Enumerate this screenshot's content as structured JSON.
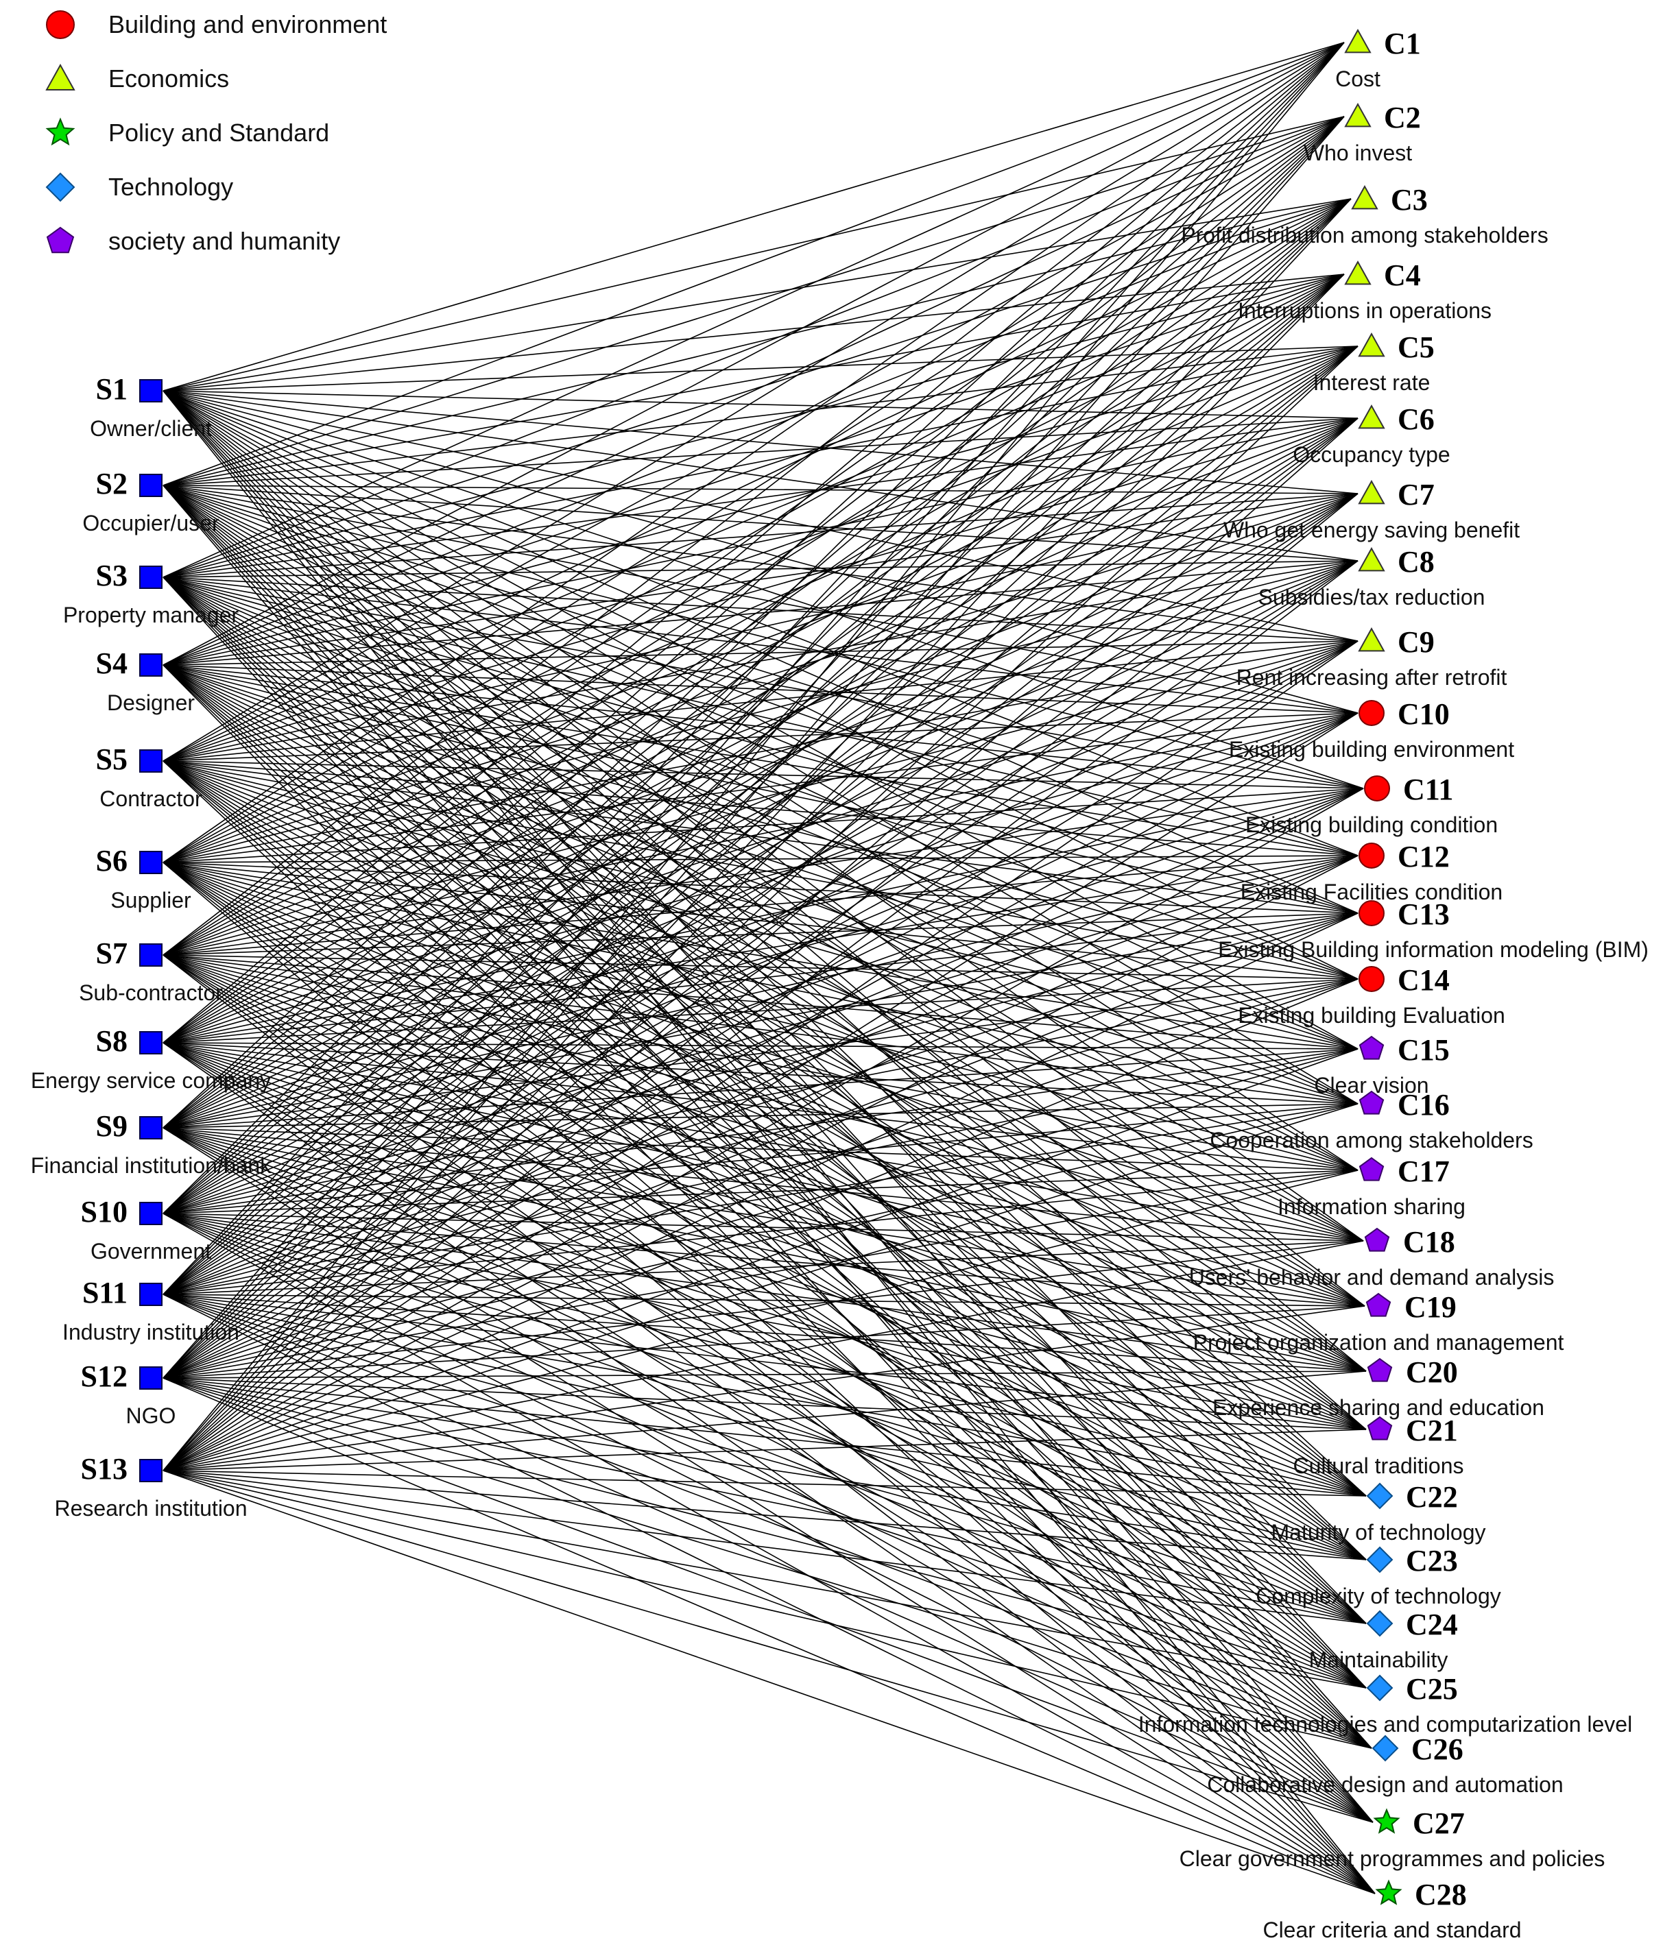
{
  "legend": [
    {
      "label": "Building and environment",
      "shape": "circle",
      "color": "#ff0000"
    },
    {
      "label": "Economics",
      "shape": "triangle",
      "color": "#ccff00"
    },
    {
      "label": "Policy and Standard",
      "shape": "star",
      "color": "#00dd00"
    },
    {
      "label": "Technology",
      "shape": "diamond",
      "color": "#1e90ff"
    },
    {
      "label": "society and humanity",
      "shape": "pentagon",
      "color": "#8800ee"
    }
  ],
  "stakeholders": [
    {
      "id": "S1",
      "name": "Owner/client"
    },
    {
      "id": "S2",
      "name": "Occupier/user"
    },
    {
      "id": "S3",
      "name": "Property manager"
    },
    {
      "id": "S4",
      "name": "Designer"
    },
    {
      "id": "S5",
      "name": "Contractor"
    },
    {
      "id": "S6",
      "name": "Supplier"
    },
    {
      "id": "S7",
      "name": "Sub-contractor"
    },
    {
      "id": "S8",
      "name": "Energy service company"
    },
    {
      "id": "S9",
      "name": "Financial institution/bank"
    },
    {
      "id": "S10",
      "name": "Government"
    },
    {
      "id": "S11",
      "name": "Industry institution"
    },
    {
      "id": "S12",
      "name": "NGO"
    },
    {
      "id": "S13",
      "name": "Research institution"
    }
  ],
  "stakeholder_color": "#0000ff",
  "criteria": [
    {
      "id": "C1",
      "name": "Cost",
      "category": "Economics"
    },
    {
      "id": "C2",
      "name": "Who invest",
      "category": "Economics"
    },
    {
      "id": "C3",
      "name": "Profit distribution among stakeholders",
      "category": "Economics"
    },
    {
      "id": "C4",
      "name": "Interruptions in operations",
      "category": "Economics"
    },
    {
      "id": "C5",
      "name": "Interest rate",
      "category": "Economics"
    },
    {
      "id": "C6",
      "name": "Occupancy type",
      "category": "Economics"
    },
    {
      "id": "C7",
      "name": "Who get energy saving benefit",
      "category": "Economics"
    },
    {
      "id": "C8",
      "name": "Subsidies/tax reduction",
      "category": "Economics"
    },
    {
      "id": "C9",
      "name": "Rent increasing after retrofit",
      "category": "Economics"
    },
    {
      "id": "C10",
      "name": "Existing building environment",
      "category": "Building and environment"
    },
    {
      "id": "C11",
      "name": "Existing building condition",
      "category": "Building and environment"
    },
    {
      "id": "C12",
      "name": "Existing  Facilities condition",
      "category": "Building and environment"
    },
    {
      "id": "C13",
      "name": "Existing Building information modeling (BIM)",
      "category": "Building and environment"
    },
    {
      "id": "C14",
      "name": "Existing building Evaluation",
      "category": "Building and environment"
    },
    {
      "id": "C15",
      "name": "Clear vision",
      "category": "society and humanity"
    },
    {
      "id": "C16",
      "name": "Cooperation among stakeholders",
      "category": "society and humanity"
    },
    {
      "id": "C17",
      "name": "Information sharing",
      "category": "society and humanity"
    },
    {
      "id": "C18",
      "name": "Users' behavior and demand analysis",
      "category": "society and humanity"
    },
    {
      "id": "C19",
      "name": "Project organization and management",
      "category": "society and humanity"
    },
    {
      "id": "C20",
      "name": "Experience sharing and education",
      "category": "society and humanity"
    },
    {
      "id": "C21",
      "name": "Cultural traditions",
      "category": "society and humanity"
    },
    {
      "id": "C22",
      "name": "Maturity of technology",
      "category": "Technology"
    },
    {
      "id": "C23",
      "name": "Complexity of technology",
      "category": "Technology"
    },
    {
      "id": "C24",
      "name": "Maintainability",
      "category": "Technology"
    },
    {
      "id": "C25",
      "name": "Information technologies and computarization level",
      "category": "Technology"
    },
    {
      "id": "C26",
      "name": "Collaborative design and automation",
      "category": "Technology"
    },
    {
      "id": "C27",
      "name": "Clear  government programmes and policies",
      "category": "Policy and Standard"
    },
    {
      "id": "C28",
      "name": "Clear criteria and standard",
      "category": "Policy and Standard"
    }
  ],
  "links_note_free": true
}
